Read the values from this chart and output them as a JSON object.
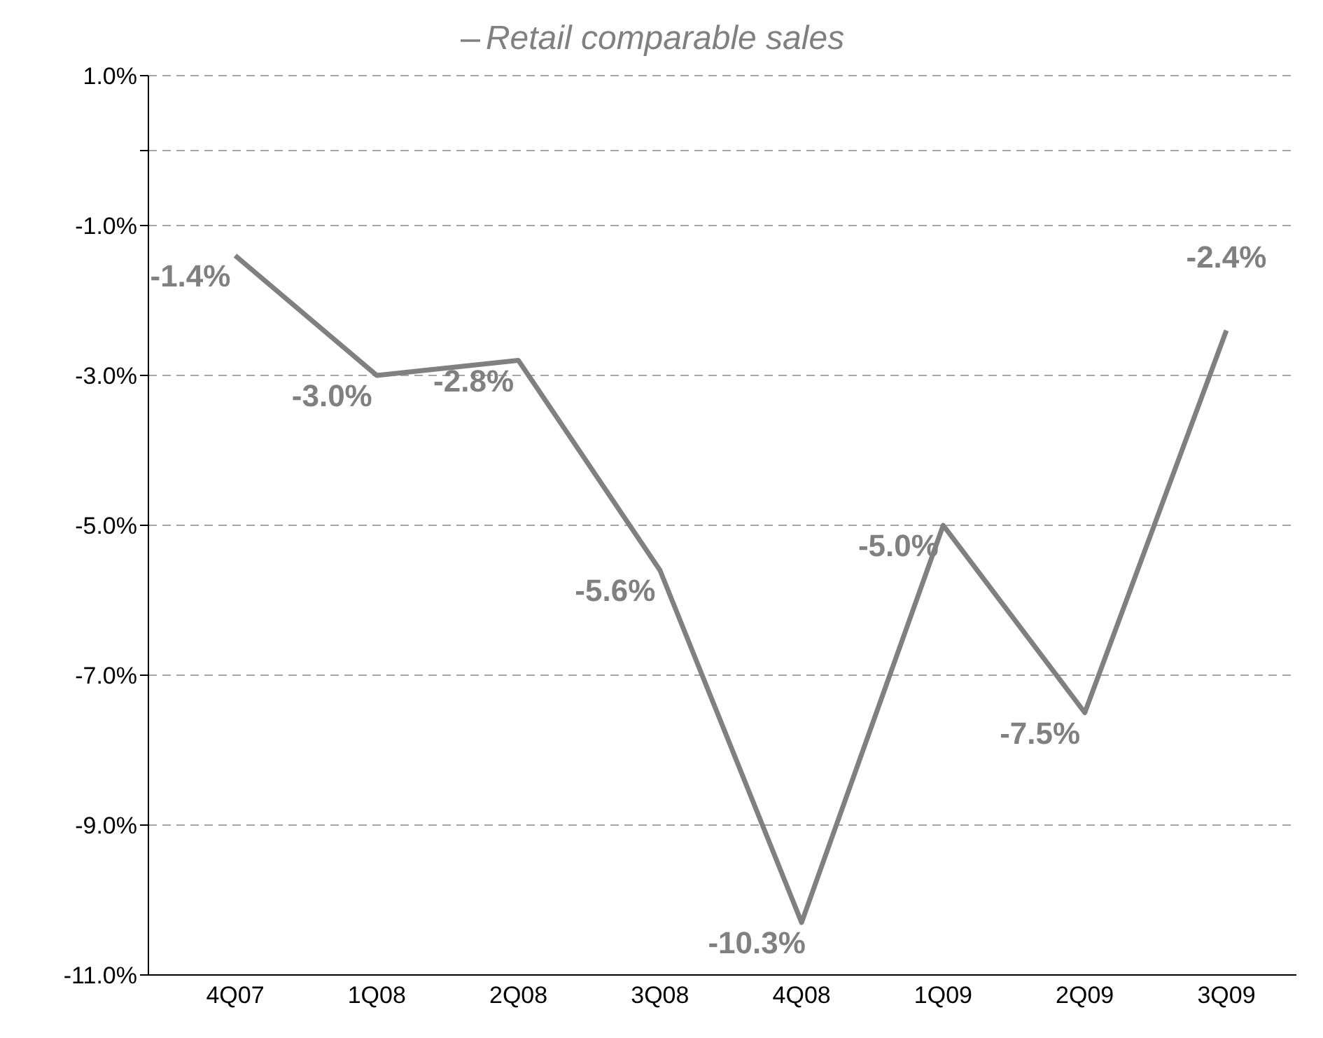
{
  "chart_data": {
    "type": "line",
    "categories": [
      "4Q07",
      "1Q08",
      "2Q08",
      "3Q08",
      "4Q08",
      "1Q09",
      "2Q09",
      "3Q09"
    ],
    "series": [
      {
        "name": "Retail comparable sales",
        "color": "#808080",
        "values": [
          -1.4,
          -3.0,
          -2.8,
          -5.6,
          -10.3,
          -5.0,
          -7.5,
          -2.4
        ],
        "value_labels": [
          "-1.4%",
          "-3.0%",
          "-2.8%",
          "-5.6%",
          "-10.3%",
          "-5.0%",
          "-7.5%",
          "-2.4%"
        ]
      }
    ],
    "ylim": [
      -11,
      1
    ],
    "yticks": [
      {
        "value": 1,
        "label": "1.0%"
      },
      {
        "value": 0,
        "label": null
      },
      {
        "value": -1,
        "label": "-1.0%"
      },
      {
        "value": -3,
        "label": "-3.0%"
      },
      {
        "value": -5,
        "label": "-5.0%"
      },
      {
        "value": -7,
        "label": "-7.0%"
      },
      {
        "value": -9,
        "label": "-9.0%"
      },
      {
        "value": -11,
        "label": "-11.0%"
      }
    ],
    "grid": "y",
    "legend": "top",
    "marker": "none",
    "line_style": "solid"
  }
}
